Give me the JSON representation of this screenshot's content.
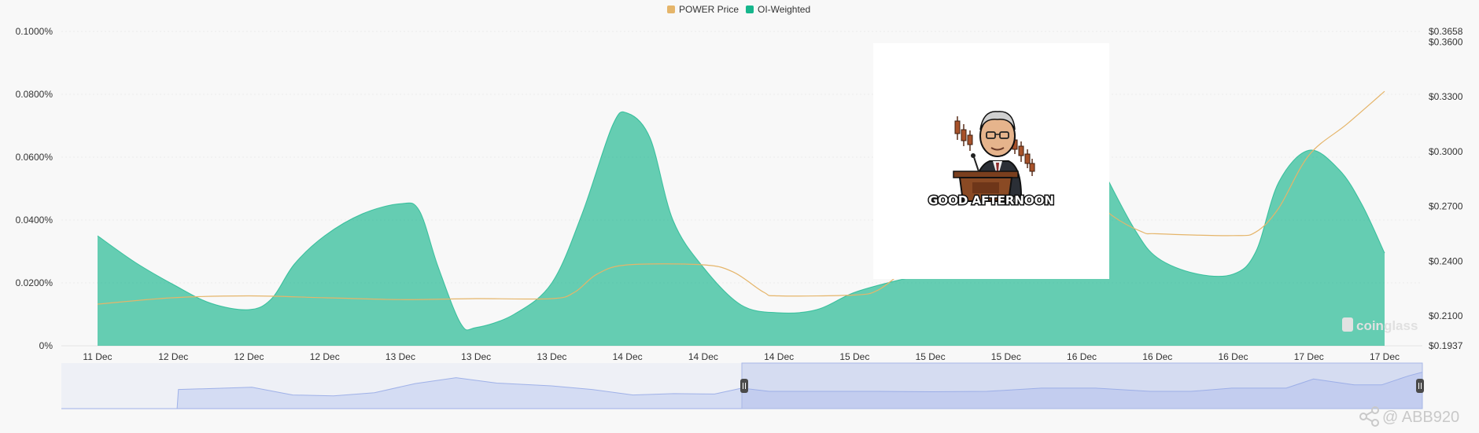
{
  "legend": [
    {
      "label": "POWER Price",
      "color": "#e5b56a"
    },
    {
      "label": "OI-Weighted",
      "color": "#16b68c"
    }
  ],
  "chart_data": {
    "type": "area",
    "x_labels": [
      "11 Dec",
      "12 Dec",
      "12 Dec",
      "12 Dec",
      "13 Dec",
      "13 Dec",
      "13 Dec",
      "14 Dec",
      "14 Dec",
      "14 Dec",
      "15 Dec",
      "15 Dec",
      "15 Dec",
      "16 Dec",
      "16 Dec",
      "16 Dec",
      "17 Dec",
      "17 Dec"
    ],
    "y_left": {
      "ticks": [
        "0%",
        "0.0200%",
        "0.0400%",
        "0.0600%",
        "0.0800%",
        "0.1000%"
      ],
      "min": 0,
      "max": 0.1,
      "unit": "%"
    },
    "y_right": {
      "ticks": [
        "$0.1937",
        "$0.2100",
        "$0.2400",
        "$0.2700",
        "$0.3000",
        "$0.3300",
        "$0.3600",
        "$0.3658"
      ],
      "min": 0.1937,
      "max": 0.3658
    },
    "grid": true,
    "legend_position": "top-center",
    "series": [
      {
        "name": "OI-Weighted",
        "type": "area",
        "axis": "left",
        "color": "#16b68c",
        "points": [
          [
            0,
            0.035
          ],
          [
            0.5,
            0.0265
          ],
          [
            1,
            0.0195
          ],
          [
            1.5,
            0.0135
          ],
          [
            2,
            0.0115
          ],
          [
            2.3,
            0.015
          ],
          [
            2.6,
            0.026
          ],
          [
            3,
            0.035
          ],
          [
            3.5,
            0.042
          ],
          [
            4,
            0.0452
          ],
          [
            4.25,
            0.043
          ],
          [
            4.5,
            0.025
          ],
          [
            4.8,
            0.007
          ],
          [
            5,
            0.0058
          ],
          [
            5.5,
            0.01
          ],
          [
            6,
            0.02
          ],
          [
            6.4,
            0.042
          ],
          [
            6.8,
            0.07
          ],
          [
            7,
            0.074
          ],
          [
            7.3,
            0.066
          ],
          [
            7.6,
            0.04
          ],
          [
            8,
            0.025
          ],
          [
            8.5,
            0.013
          ],
          [
            9,
            0.0105
          ],
          [
            9.5,
            0.0115
          ],
          [
            10,
            0.017
          ],
          [
            10.6,
            0.021
          ],
          [
            11,
            0.023
          ],
          [
            11.5,
            0.03
          ],
          [
            12,
            0.05
          ],
          [
            12.5,
            0.072
          ],
          [
            13,
            0.07
          ],
          [
            13.3,
            0.055
          ],
          [
            13.7,
            0.037
          ],
          [
            14,
            0.028
          ],
          [
            14.5,
            0.023
          ],
          [
            15,
            0.0228
          ],
          [
            15.3,
            0.03
          ],
          [
            15.6,
            0.052
          ],
          [
            16,
            0.0622
          ],
          [
            16.4,
            0.056
          ],
          [
            16.7,
            0.045
          ],
          [
            17,
            0.0295
          ]
        ]
      },
      {
        "name": "POWER Price",
        "type": "line",
        "axis": "right",
        "color": "#e5b56a",
        "points": [
          [
            0,
            0.2165
          ],
          [
            1,
            0.22
          ],
          [
            2,
            0.221
          ],
          [
            3,
            0.22
          ],
          [
            4,
            0.219
          ],
          [
            5,
            0.2195
          ],
          [
            6,
            0.2195
          ],
          [
            6.3,
            0.223
          ],
          [
            6.6,
            0.233
          ],
          [
            7,
            0.238
          ],
          [
            8,
            0.238
          ],
          [
            8.4,
            0.234
          ],
          [
            8.8,
            0.223
          ],
          [
            9,
            0.221
          ],
          [
            10,
            0.2215
          ],
          [
            10.3,
            0.224
          ],
          [
            10.6,
            0.233
          ],
          [
            11,
            0.245
          ],
          [
            12,
            0.265
          ],
          [
            12.5,
            0.285
          ],
          [
            13,
            0.28
          ],
          [
            13.4,
            0.265
          ],
          [
            13.8,
            0.256
          ],
          [
            14,
            0.255
          ],
          [
            15,
            0.254
          ],
          [
            15.3,
            0.256
          ],
          [
            15.6,
            0.269
          ],
          [
            16,
            0.298
          ],
          [
            16.5,
            0.315
          ],
          [
            17,
            0.333
          ]
        ]
      }
    ]
  },
  "navigator": {
    "points": [
      [
        0,
        0
      ],
      [
        0.07,
        0
      ],
      [
        0.085,
        0
      ],
      [
        0.086,
        0.42
      ],
      [
        0.12,
        0.45
      ],
      [
        0.14,
        0.47
      ],
      [
        0.17,
        0.3
      ],
      [
        0.2,
        0.28
      ],
      [
        0.23,
        0.35
      ],
      [
        0.26,
        0.55
      ],
      [
        0.29,
        0.68
      ],
      [
        0.32,
        0.56
      ],
      [
        0.36,
        0.5
      ],
      [
        0.39,
        0.42
      ],
      [
        0.42,
        0.3
      ],
      [
        0.45,
        0.33
      ],
      [
        0.48,
        0.32
      ],
      [
        0.5,
        0.45
      ],
      [
        0.52,
        0.38
      ],
      [
        0.56,
        0.38
      ],
      [
        0.6,
        0.38
      ],
      [
        0.64,
        0.37
      ],
      [
        0.68,
        0.38
      ],
      [
        0.72,
        0.45
      ],
      [
        0.76,
        0.45
      ],
      [
        0.8,
        0.38
      ],
      [
        0.83,
        0.38
      ],
      [
        0.86,
        0.45
      ],
      [
        0.9,
        0.45
      ],
      [
        0.92,
        0.65
      ],
      [
        0.95,
        0.52
      ],
      [
        0.97,
        0.52
      ],
      [
        0.99,
        0.72
      ],
      [
        1,
        0.8
      ]
    ],
    "window_start": 0.5,
    "window_end": 1.0
  },
  "sticker": {
    "caption": "GOOD AFTERNOON"
  },
  "watermark": "coinglass",
  "credit": "@ ABB920"
}
